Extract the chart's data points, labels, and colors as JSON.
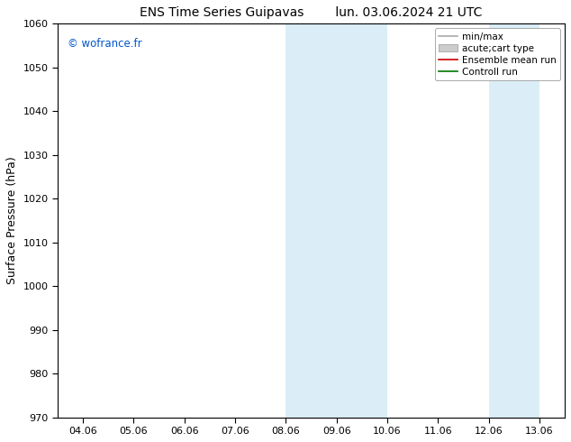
{
  "title_left": "ENS Time Series Guipavas",
  "title_right": "lun. 03.06.2024 21 UTC",
  "ylabel": "Surface Pressure (hPa)",
  "ylim": [
    970,
    1060
  ],
  "yticks": [
    970,
    980,
    990,
    1000,
    1010,
    1020,
    1030,
    1040,
    1050,
    1060
  ],
  "xtick_labels": [
    "04.06",
    "05.06",
    "06.06",
    "07.06",
    "08.06",
    "09.06",
    "10.06",
    "11.06",
    "12.06",
    "13.06"
  ],
  "shade_color": "#dbeef7",
  "background_color": "#ffffff",
  "watermark": "© wofrance.fr",
  "watermark_color": "#0055cc",
  "legend_entries": [
    {
      "label": "min/max",
      "color": "#aaaaaa",
      "lw": 1.2,
      "ls": "-",
      "type": "line"
    },
    {
      "label": "acute;cart type",
      "color": "#cccccc",
      "lw": 8,
      "ls": "-",
      "type": "patch"
    },
    {
      "label": "Ensemble mean run",
      "color": "#cc0000",
      "lw": 1.2,
      "ls": "-",
      "type": "line"
    },
    {
      "label": "Controll run",
      "color": "#007700",
      "lw": 1.2,
      "ls": "-",
      "type": "line"
    }
  ],
  "title_fontsize": 10,
  "ylabel_fontsize": 9,
  "tick_fontsize": 8,
  "legend_fontsize": 7.5
}
